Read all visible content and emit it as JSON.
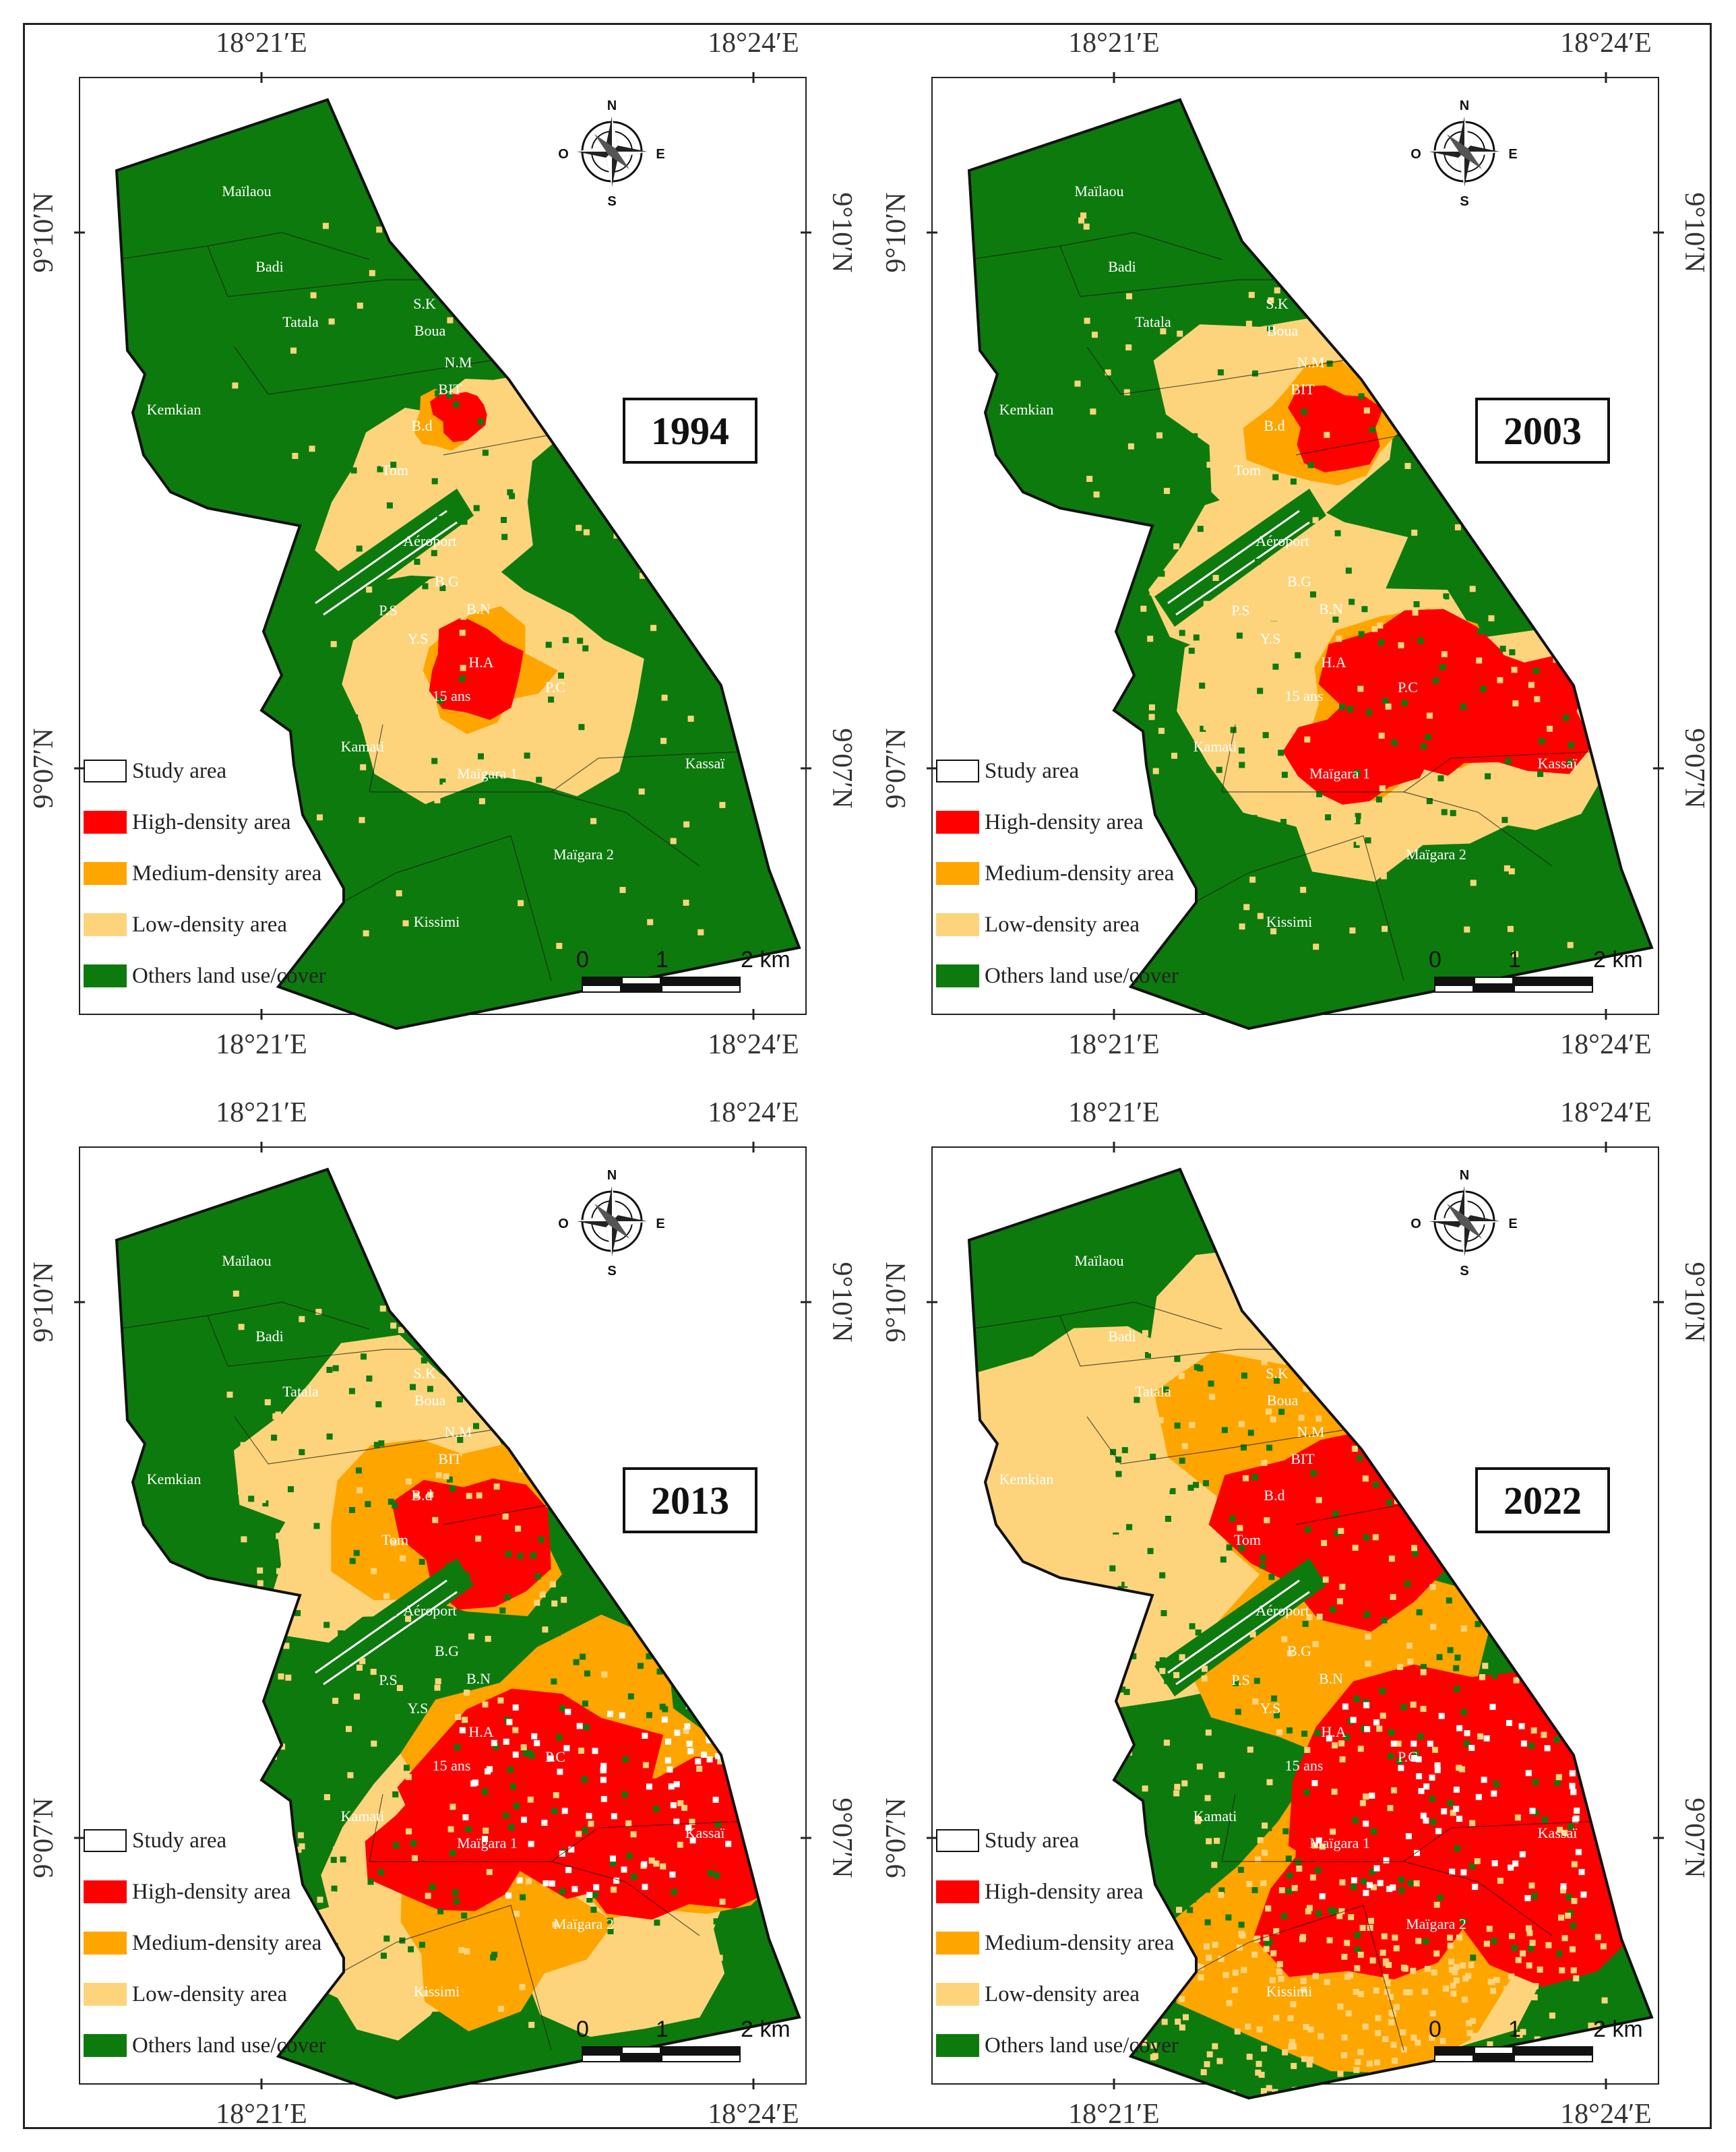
{
  "lon_labels": [
    "18°21′E",
    "18°24′E"
  ],
  "lat_labels": [
    "9°10′N",
    "9°07′N"
  ],
  "compass": {
    "n": "N",
    "s": "S",
    "e": "E",
    "w": "O"
  },
  "panels": [
    {
      "year": "1994",
      "stage": 0
    },
    {
      "year": "2003",
      "stage": 1
    },
    {
      "year": "2013",
      "stage": 2
    },
    {
      "year": "2022",
      "stage": 3
    }
  ],
  "legend": [
    {
      "label": "Study area",
      "color": "#ffffff",
      "icon": "outline-box"
    },
    {
      "label": "High-density area",
      "color": "#ff0000"
    },
    {
      "label": "Medium-density area",
      "color": "#ffa500"
    },
    {
      "label": "Low-density area",
      "color": "#fdd47c"
    },
    {
      "label": "Others land use/cover",
      "color": "#0d7a0d"
    }
  ],
  "scale": {
    "labels": [
      "0",
      "1",
      "2 km"
    ]
  },
  "colors": {
    "other": "#0d7a0d",
    "low": "#fdd47c",
    "medium": "#ffa500",
    "high": "#ff0000"
  },
  "districts": {
    "mailaou": "Maïlaou",
    "badi": "Badi",
    "tatala": "Tatala",
    "kemkian": "Kemkian",
    "boua": "Boua",
    "nm": "N.M",
    "bit": "BIT",
    "sk": "S.K",
    "bd": "B.d",
    "tom": "Tom",
    "aeroport": "Aéroport",
    "ps": "P.S",
    "bg": "B.G",
    "bn": "B.N",
    "ys": "Y.S",
    "ha": "H.A",
    "pc": "P.C",
    "quinze": "15 ans",
    "kamati": "Kamati",
    "maigara1": "Maïgara 1",
    "maigara2": "Maïgara 2",
    "kassai": "Kassaï",
    "kissimi": "Kissimi"
  }
}
